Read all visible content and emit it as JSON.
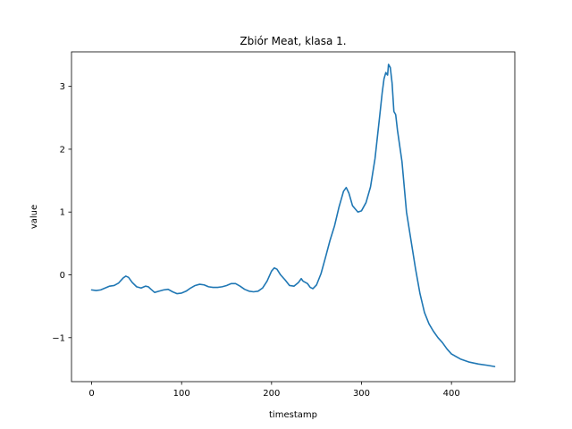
{
  "chart_data": {
    "type": "line",
    "title": "Zbiór Meat, klasa 1.",
    "xlabel": "timestamp",
    "ylabel": "value",
    "xlim": [
      -22.4,
      470.4
    ],
    "ylim": [
      -1.7,
      3.55
    ],
    "x_ticks": [
      0,
      100,
      200,
      300,
      400
    ],
    "x_tick_labels": [
      "0",
      "100",
      "200",
      "300",
      "400"
    ],
    "y_ticks": [
      -1,
      0,
      1,
      2,
      3
    ],
    "y_tick_labels": [
      "−1",
      "0",
      "1",
      "2",
      "3"
    ],
    "grid": false,
    "series_color": "#1f77b4",
    "series": [
      {
        "x": [
          0,
          5,
          10,
          15,
          20,
          25,
          30,
          35,
          38,
          41,
          45,
          50,
          55,
          60,
          63,
          66,
          70,
          75,
          80,
          85,
          90,
          95,
          100,
          105,
          110,
          115,
          120,
          125,
          130,
          135,
          140,
          145,
          150,
          155,
          160,
          165,
          170,
          175,
          180,
          185,
          190,
          195,
          200,
          203,
          206,
          210,
          215,
          220,
          225,
          230,
          233,
          235,
          240,
          243,
          246,
          250,
          255,
          260,
          265,
          270,
          275,
          280,
          283,
          286,
          290,
          293,
          296,
          300,
          305,
          310,
          315,
          320,
          323,
          325,
          327,
          329,
          330,
          332,
          334,
          336,
          338,
          340,
          345,
          350,
          355,
          360,
          365,
          370,
          375,
          380,
          385,
          390,
          395,
          400,
          410,
          420,
          430,
          440,
          448
        ],
        "y": [
          -0.24,
          -0.25,
          -0.24,
          -0.21,
          -0.18,
          -0.17,
          -0.13,
          -0.05,
          -0.02,
          -0.04,
          -0.12,
          -0.19,
          -0.21,
          -0.18,
          -0.19,
          -0.23,
          -0.28,
          -0.26,
          -0.24,
          -0.23,
          -0.27,
          -0.3,
          -0.29,
          -0.26,
          -0.21,
          -0.17,
          -0.15,
          -0.16,
          -0.19,
          -0.2,
          -0.2,
          -0.19,
          -0.17,
          -0.14,
          -0.14,
          -0.18,
          -0.23,
          -0.26,
          -0.27,
          -0.26,
          -0.21,
          -0.1,
          0.06,
          0.11,
          0.09,
          0.0,
          -0.08,
          -0.17,
          -0.18,
          -0.12,
          -0.06,
          -0.1,
          -0.14,
          -0.2,
          -0.22,
          -0.16,
          0.02,
          0.28,
          0.55,
          0.78,
          1.08,
          1.33,
          1.39,
          1.3,
          1.1,
          1.05,
          1.0,
          1.02,
          1.15,
          1.4,
          1.85,
          2.5,
          2.9,
          3.12,
          3.22,
          3.18,
          3.35,
          3.3,
          3.05,
          2.6,
          2.55,
          2.3,
          1.8,
          1.0,
          0.55,
          0.1,
          -0.3,
          -0.6,
          -0.78,
          -0.9,
          -1.0,
          -1.08,
          -1.18,
          -1.26,
          -1.34,
          -1.39,
          -1.42,
          -1.44,
          -1.46
        ]
      }
    ]
  }
}
